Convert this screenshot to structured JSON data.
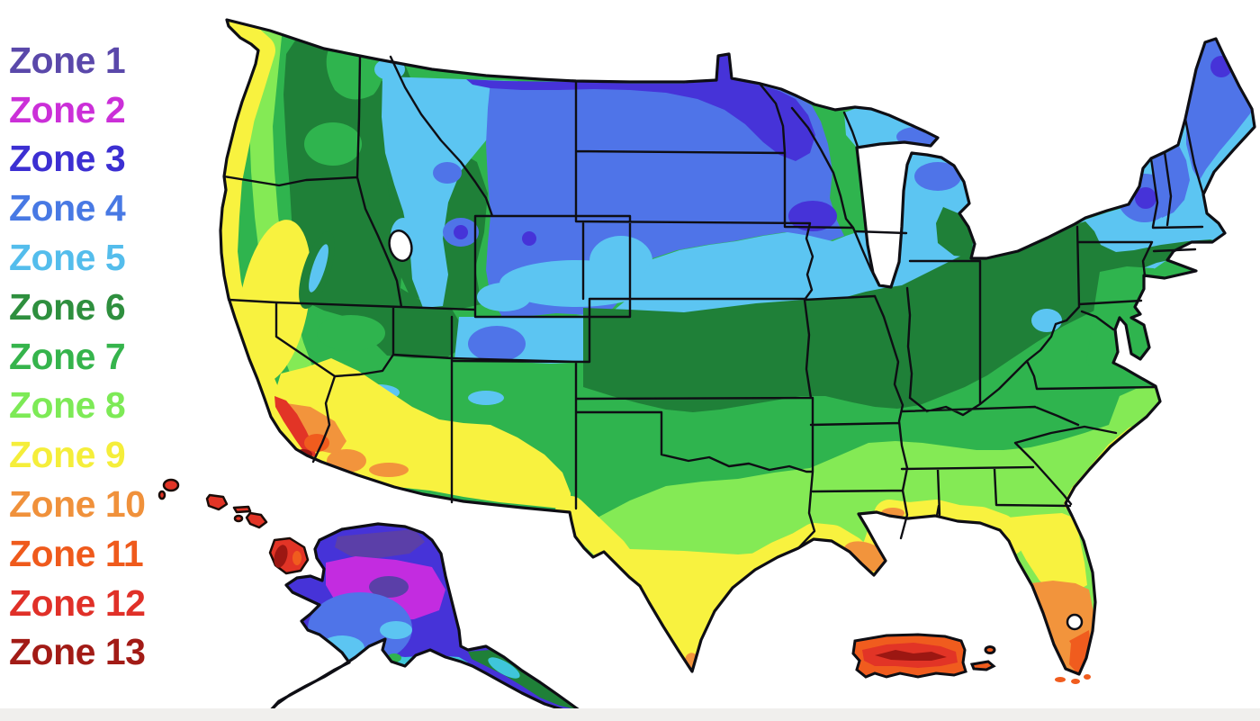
{
  "page": {
    "background": "#ffffff",
    "bottom_bar_color": "#f0efed"
  },
  "legend": {
    "items": [
      {
        "id": "zone-1",
        "label": "Zone 1",
        "color": "#5a48aa"
      },
      {
        "id": "zone-2",
        "label": "Zone 2",
        "color": "#cb2fd8"
      },
      {
        "id": "zone-3",
        "label": "Zone 3",
        "color": "#3c2fd2"
      },
      {
        "id": "zone-4",
        "label": "Zone 4",
        "color": "#4879e4"
      },
      {
        "id": "zone-5",
        "label": "Zone 5",
        "color": "#54bdec"
      },
      {
        "id": "zone-6",
        "label": "Zone 6",
        "color": "#2e8f3e"
      },
      {
        "id": "zone-7",
        "label": "Zone 7",
        "color": "#35b44c"
      },
      {
        "id": "zone-8",
        "label": "Zone 8",
        "color": "#7dea56"
      },
      {
        "id": "zone-9",
        "label": "Zone 9",
        "color": "#f5ee3a"
      },
      {
        "id": "zone-10",
        "label": "Zone 10",
        "color": "#f0913b"
      },
      {
        "id": "zone-11",
        "label": "Zone 11",
        "color": "#ef5a1c"
      },
      {
        "id": "zone-12",
        "label": "Zone 12",
        "color": "#e03028"
      },
      {
        "id": "zone-13",
        "label": "Zone 13",
        "color": "#a21b16"
      }
    ]
  },
  "map": {
    "zone_fills": {
      "z1": "#5b3fa8",
      "z2": "#c32ce0",
      "z3": "#4633d8",
      "z4": "#4f74e8",
      "z5": "#5cc5f2",
      "z6": "#1f8038",
      "z7": "#2fb44e",
      "z8": "#84ea55",
      "z9": "#f8f23f",
      "z10": "#f2943c",
      "z11": "#f05c1e",
      "z12": "#e23426",
      "z13": "#9c1712",
      "teal": "#3fc6da",
      "water": "#ffffff",
      "outline": "#0e0e14"
    }
  }
}
